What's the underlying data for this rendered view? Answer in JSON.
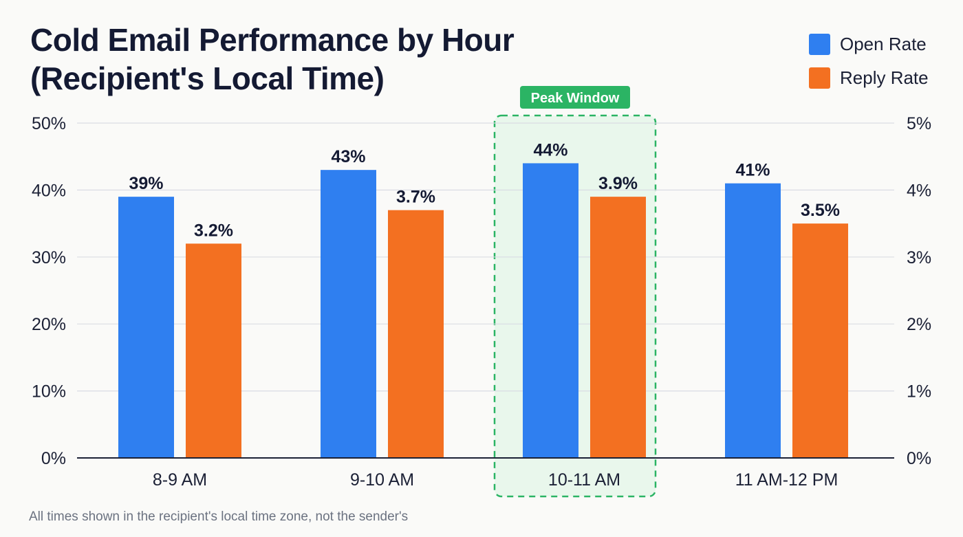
{
  "title_lines": [
    "Cold Email Performance by Hour",
    "(Recipient's Local Time)"
  ],
  "footnote": "All times shown in the recipient's local time zone, not the sender's",
  "colors": {
    "open": "#2f7ff0",
    "reply": "#f37021",
    "peak": "#2bb464",
    "peak_fill": "#e9f7ec",
    "grid": "#d9dce3",
    "axis": "#1b2035"
  },
  "chart_data": {
    "type": "bar",
    "title": "Cold Email Performance by Hour (Recipient's Local Time)",
    "categories": [
      "8-9 AM",
      "9-10 AM",
      "10-11 AM",
      "11 AM-12 PM"
    ],
    "series": [
      {
        "name": "Open Rate",
        "axis": "left",
        "values": [
          39,
          43,
          44,
          41
        ],
        "labels": [
          "39%",
          "43%",
          "44%",
          "41%"
        ]
      },
      {
        "name": "Reply Rate",
        "axis": "right",
        "values": [
          3.2,
          3.7,
          3.9,
          3.5
        ],
        "labels": [
          "3.2%",
          "3.7%",
          "3.9%",
          "3.5%"
        ]
      }
    ],
    "y_left": {
      "range": [
        0,
        50
      ],
      "ticks": [
        "0%",
        "10%",
        "20%",
        "30%",
        "40%",
        "50%"
      ]
    },
    "y_right": {
      "range": [
        0,
        5
      ],
      "ticks": [
        "0%",
        "1%",
        "2%",
        "3%",
        "4%",
        "5%"
      ]
    },
    "grid": true,
    "legend": "top-right",
    "annotation": {
      "label": "Peak Window",
      "category": "10-11 AM"
    }
  }
}
